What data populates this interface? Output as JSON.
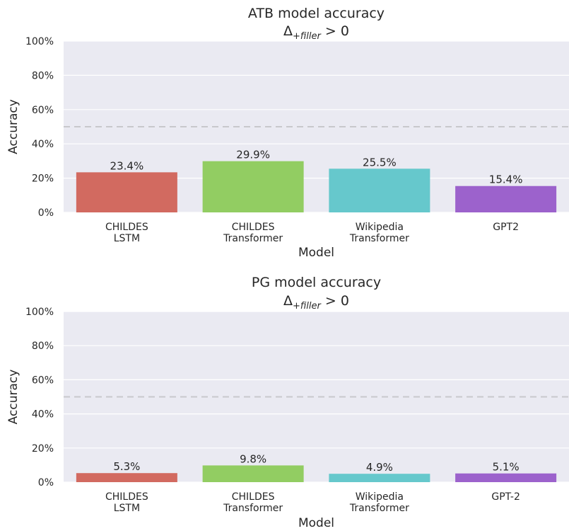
{
  "chart_data": [
    {
      "type": "bar",
      "title": "ATB model accuracy",
      "subtitle": "Δ+filler > 0",
      "subtitle_base": "Δ",
      "subtitle_sub": "+filler",
      "subtitle_rest": " > 0",
      "xlabel": "Model",
      "ylabel": "Accuracy",
      "ylim": [
        0,
        100
      ],
      "yticks": [
        "0%",
        "20%",
        "40%",
        "60%",
        "80%",
        "100%"
      ],
      "reference_line": 50,
      "grid": true,
      "categories": [
        [
          "CHILDES",
          "LSTM"
        ],
        [
          "CHILDES",
          "Transformer"
        ],
        [
          "Wikipedia",
          "Transformer"
        ],
        [
          "GPT2"
        ]
      ],
      "values": [
        23.4,
        29.9,
        25.5,
        15.4
      ],
      "value_labels": [
        "23.4%",
        "29.9%",
        "25.5%",
        "15.4%"
      ],
      "colors": [
        "#d26a60",
        "#92cd62",
        "#66c8cc",
        "#9c62cc"
      ]
    },
    {
      "type": "bar",
      "title": "PG model accuracy",
      "subtitle": "Δ+filler > 0",
      "subtitle_base": "Δ",
      "subtitle_sub": "+filler",
      "subtitle_rest": " > 0",
      "xlabel": "Model",
      "ylabel": "Accuracy",
      "ylim": [
        0,
        100
      ],
      "yticks": [
        "0%",
        "20%",
        "40%",
        "60%",
        "80%",
        "100%"
      ],
      "reference_line": 50,
      "grid": true,
      "categories": [
        [
          "CHILDES",
          "LSTM"
        ],
        [
          "CHILDES",
          "Transformer"
        ],
        [
          "Wikipedia",
          "Transformer"
        ],
        [
          "GPT-2"
        ]
      ],
      "values": [
        5.3,
        9.8,
        4.9,
        5.1
      ],
      "value_labels": [
        "5.3%",
        "9.8%",
        "4.9%",
        "5.1%"
      ],
      "colors": [
        "#d26a60",
        "#92cd62",
        "#66c8cc",
        "#9c62cc"
      ]
    }
  ]
}
